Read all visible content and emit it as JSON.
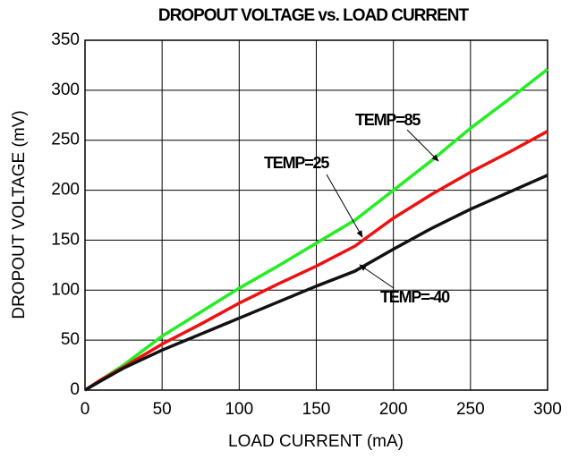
{
  "chart_data": {
    "type": "line",
    "title": "DROPOUT VOLTAGE vs. LOAD CURRENT",
    "x_label": "LOAD CURRENT (mA)",
    "y_label": "DROPOUT VOLTAGE (mV)",
    "x": [
      0,
      10,
      25,
      50,
      75,
      100,
      125,
      150,
      175,
      200,
      225,
      250,
      275,
      300
    ],
    "series": [
      {
        "color": "#22ee22",
        "values": [
          0,
          10,
          25,
          54,
          78,
          102,
          124,
          147,
          170,
          200,
          230,
          262,
          291,
          321
        ]
      },
      {
        "color": "#ee1111",
        "values": [
          0,
          10,
          23,
          46,
          66,
          87,
          106,
          124,
          144,
          172,
          196,
          218,
          238,
          259
        ]
      },
      {
        "color": "#111111",
        "values": [
          0,
          9,
          22,
          40,
          56,
          72,
          88,
          104,
          119,
          141,
          162,
          181,
          198,
          215
        ]
      }
    ],
    "annotations": [
      "TEMP=85",
      "TEMP=25",
      "TEMP=-40"
    ],
    "xlim": [
      0,
      300
    ],
    "xticks": [
      0,
      50,
      100,
      150,
      200,
      250,
      300
    ],
    "ylim": [
      0,
      350
    ],
    "yticks": [
      0,
      50,
      100,
      150,
      200,
      250,
      300,
      350
    ],
    "grid": true
  }
}
